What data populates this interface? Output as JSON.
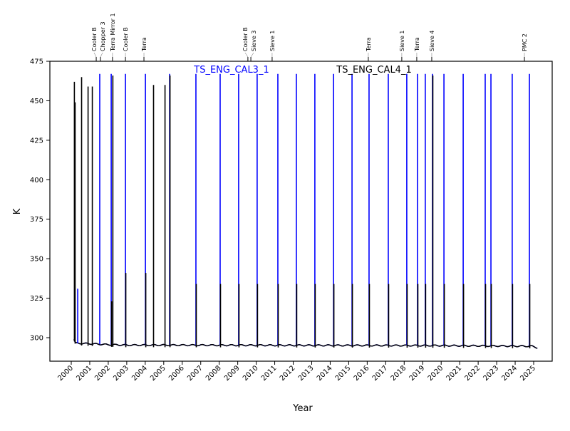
{
  "chart_data": {
    "type": "line",
    "xlabel": "Year",
    "ylabel": "K",
    "xlim": [
      1998.85,
      2026.0
    ],
    "ylim": [
      285,
      475
    ],
    "x_ticks": [
      2000,
      2001,
      2002,
      2003,
      2004,
      2005,
      2006,
      2007,
      2008,
      2009,
      2010,
      2011,
      2012,
      2013,
      2014,
      2015,
      2016,
      2017,
      2018,
      2019,
      2020,
      2021,
      2022,
      2023,
      2024,
      2025
    ],
    "y_ticks": [
      300,
      325,
      350,
      375,
      400,
      425,
      450,
      475
    ],
    "grid": false,
    "series": [
      {
        "name": "TS_ENG_CAL3_1",
        "color": "#0000ff"
      },
      {
        "name": "TS_ENG_CAL4_1",
        "color": "#000000"
      }
    ],
    "baseline": [
      [
        2000.15,
        299
      ],
      [
        2000.22,
        296.5
      ],
      [
        2001.0,
        296.2
      ],
      [
        2002.0,
        295.6
      ],
      [
        2003.0,
        295.3
      ],
      [
        2005.0,
        295.3
      ],
      [
        2010.0,
        295.2
      ],
      [
        2015.0,
        295.1
      ],
      [
        2020.0,
        295.0
      ],
      [
        2024.9,
        294.6
      ],
      [
        2025.05,
        294.2
      ],
      [
        2025.2,
        293.6
      ]
    ],
    "spikes": [
      {
        "year": 2000.15,
        "cal3": null,
        "cal4": 462
      },
      {
        "year": 2000.19,
        "cal3": null,
        "cal4": 449
      },
      {
        "year": 2000.35,
        "cal3": 331,
        "cal4": null
      },
      {
        "year": 2000.54,
        "cal3": null,
        "cal4": 465
      },
      {
        "year": 2000.89,
        "cal3": null,
        "cal4": 459
      },
      {
        "year": 2001.12,
        "cal3": null,
        "cal4": 459
      },
      {
        "year": 2001.54,
        "cal3": 467,
        "cal4": null
      },
      {
        "year": 2002.16,
        "cal3": 467,
        "cal4": 323
      },
      {
        "year": 2002.23,
        "cal3": null,
        "cal4": 466
      },
      {
        "year": 2002.93,
        "cal3": 467,
        "cal4": 341
      },
      {
        "year": 2004.01,
        "cal3": 467,
        "cal4": 341
      },
      {
        "year": 2004.43,
        "cal3": null,
        "cal4": 460
      },
      {
        "year": 2005.05,
        "cal3": null,
        "cal4": 460
      },
      {
        "year": 2005.32,
        "cal3": 467,
        "cal4": 466
      },
      {
        "year": 2006.74,
        "cal3": 467,
        "cal4": 334
      },
      {
        "year": 2008.05,
        "cal3": 467,
        "cal4": 334
      },
      {
        "year": 2009.05,
        "cal3": 467,
        "cal4": 334
      },
      {
        "year": 2010.05,
        "cal3": 467,
        "cal4": 334
      },
      {
        "year": 2011.17,
        "cal3": 467,
        "cal4": 334
      },
      {
        "year": 2012.17,
        "cal3": 467,
        "cal4": 334
      },
      {
        "year": 2013.17,
        "cal3": 467,
        "cal4": 334
      },
      {
        "year": 2014.18,
        "cal3": 467,
        "cal4": 334
      },
      {
        "year": 2015.18,
        "cal3": 467,
        "cal4": 334
      },
      {
        "year": 2016.1,
        "cal3": 467,
        "cal4": 334
      },
      {
        "year": 2017.14,
        "cal3": 467,
        "cal4": 334
      },
      {
        "year": 2018.14,
        "cal3": 467,
        "cal4": 334
      },
      {
        "year": 2018.72,
        "cal3": 467,
        "cal4": 334
      },
      {
        "year": 2019.14,
        "cal3": 467,
        "cal4": 334
      },
      {
        "year": 2019.53,
        "cal3": 467,
        "cal4": 466
      },
      {
        "year": 2020.15,
        "cal3": 467,
        "cal4": 334
      },
      {
        "year": 2021.19,
        "cal3": 467,
        "cal4": 334
      },
      {
        "year": 2022.38,
        "cal3": 467,
        "cal4": 334
      },
      {
        "year": 2022.69,
        "cal3": 467,
        "cal4": 334
      },
      {
        "year": 2023.84,
        "cal3": 467,
        "cal4": 334
      },
      {
        "year": 2024.77,
        "cal3": 467,
        "cal4": 334
      }
    ],
    "events": [
      {
        "year": 2001.35,
        "label": "Cooler B"
      },
      {
        "year": 2001.58,
        "label": "Chopper 3"
      },
      {
        "year": 2002.23,
        "label": "Terra Mirror 1"
      },
      {
        "year": 2002.93,
        "label": "Cooler B"
      },
      {
        "year": 2003.93,
        "label": "Terra"
      },
      {
        "year": 2009.55,
        "label": "Cooler B"
      },
      {
        "year": 2009.71,
        "label": "Sieve 3"
      },
      {
        "year": 2010.86,
        "label": "Sieve 1"
      },
      {
        "year": 2016.06,
        "label": "Terra"
      },
      {
        "year": 2017.87,
        "label": "Sieve 1"
      },
      {
        "year": 2018.68,
        "label": "Terra"
      },
      {
        "year": 2019.49,
        "label": "Sieve 4"
      },
      {
        "year": 2024.5,
        "label": "PMC 2"
      }
    ]
  }
}
